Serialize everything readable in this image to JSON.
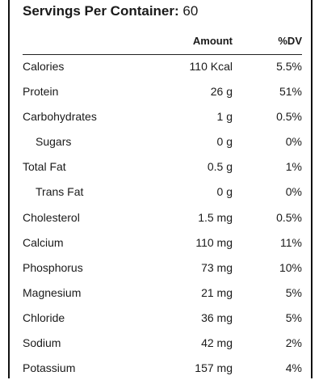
{
  "servings": {
    "label": "Servings Per Container:",
    "value": "60"
  },
  "header": {
    "amount": "Amount",
    "dv": "%DV"
  },
  "rows": [
    {
      "name": "Calories",
      "amount": "110 Kcal",
      "dv": "5.5%"
    },
    {
      "name": "Protein",
      "amount": "26 g",
      "dv": "51%"
    },
    {
      "name": "Carbohydrates",
      "amount": "1 g",
      "dv": "0.5%"
    },
    {
      "name": "Sugars",
      "amount": "0 g",
      "dv": "0%"
    },
    {
      "name": "Total Fat",
      "amount": "0.5 g",
      "dv": "1%"
    },
    {
      "name": "Trans Fat",
      "amount": "0 g",
      "dv": "0%"
    },
    {
      "name": "Cholesterol",
      "amount": "1.5 mg",
      "dv": "0.5%"
    },
    {
      "name": "Calcium",
      "amount": "110 mg",
      "dv": "11%"
    },
    {
      "name": "Phosphorus",
      "amount": "73 mg",
      "dv": "10%"
    },
    {
      "name": "Magnesium",
      "amount": "21 mg",
      "dv": "5%"
    },
    {
      "name": "Chloride",
      "amount": "36 mg",
      "dv": "5%"
    },
    {
      "name": "Sodium",
      "amount": "42 mg",
      "dv": "2%"
    },
    {
      "name": "Potassium",
      "amount": "157 mg",
      "dv": "4%"
    }
  ]
}
